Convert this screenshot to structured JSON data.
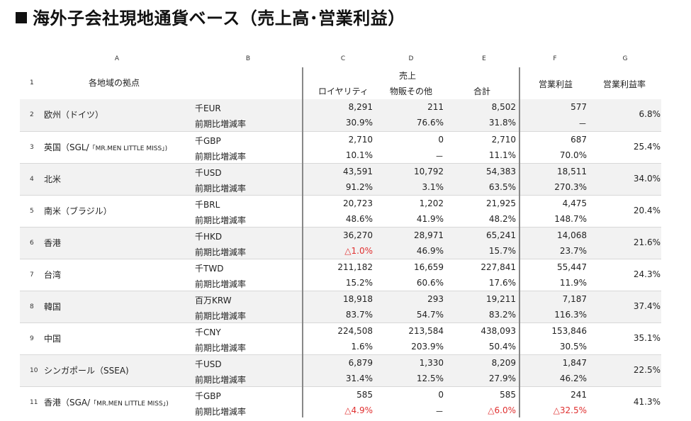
{
  "title": "海外子会社現地通貨ベース（売上高･営業利益）",
  "columns": [
    "A",
    "B",
    "C",
    "D",
    "E",
    "F",
    "G"
  ],
  "header": {
    "row_num": "1",
    "location_label": "各地域の拠点",
    "sales_group": "売上",
    "royalty": "ロイヤリティ",
    "retail_other": "物販その他",
    "total": "合計",
    "op_profit": "営業利益",
    "op_margin": "営業利益率"
  },
  "rows": [
    {
      "num": "2",
      "loc": "欧州（ドイツ）",
      "loc_small": "",
      "unit": "千EUR",
      "change_label": "前期比増減率",
      "royalty": "8,291",
      "retail": "211",
      "total": "8,502",
      "profit": "577",
      "royalty_chg": "30.9%",
      "retail_chg": "76.6%",
      "total_chg": "31.8%",
      "profit_chg": "－",
      "margin": "6.8%"
    },
    {
      "num": "3",
      "loc": "英国（SGL/",
      "loc_small": "「MR.MEN LITTLE MISS」)",
      "unit": "千GBP",
      "change_label": "前期比増減率",
      "royalty": "2,710",
      "retail": "0",
      "total": "2,710",
      "profit": "687",
      "royalty_chg": "10.1%",
      "retail_chg": "－",
      "total_chg": "11.1%",
      "profit_chg": "70.0%",
      "margin": "25.4%"
    },
    {
      "num": "4",
      "loc": "北米",
      "loc_small": "",
      "unit": "千USD",
      "change_label": "前期比増減率",
      "royalty": "43,591",
      "retail": "10,792",
      "total": "54,383",
      "profit": "18,511",
      "royalty_chg": "91.2%",
      "retail_chg": "3.1%",
      "total_chg": "63.5%",
      "profit_chg": "270.3%",
      "margin": "34.0%"
    },
    {
      "num": "5",
      "loc": "南米（ブラジル）",
      "loc_small": "",
      "unit": "千BRL",
      "change_label": "前期比増減率",
      "royalty": "20,723",
      "retail": "1,202",
      "total": "21,925",
      "profit": "4,475",
      "royalty_chg": "48.6%",
      "retail_chg": "41.9%",
      "total_chg": "48.2%",
      "profit_chg": "148.7%",
      "margin": "20.4%"
    },
    {
      "num": "6",
      "loc": "香港",
      "loc_small": "",
      "unit": "千HKD",
      "change_label": "前期比増減率",
      "royalty": "36,270",
      "retail": "28,971",
      "total": "65,241",
      "profit": "14,068",
      "royalty_chg": "△1.0%",
      "retail_chg": "46.9%",
      "total_chg": "15.7%",
      "profit_chg": "23.7%",
      "margin": "21.6%"
    },
    {
      "num": "7",
      "loc": "台湾",
      "loc_small": "",
      "unit": "千TWD",
      "change_label": "前期比増減率",
      "royalty": "211,182",
      "retail": "16,659",
      "total": "227,841",
      "profit": "55,447",
      "royalty_chg": "15.2%",
      "retail_chg": "60.6%",
      "total_chg": "17.6%",
      "profit_chg": "11.9%",
      "margin": "24.3%"
    },
    {
      "num": "8",
      "loc": "韓国",
      "loc_small": "",
      "unit": "百万KRW",
      "change_label": "前期比増減率",
      "royalty": "18,918",
      "retail": "293",
      "total": "19,211",
      "profit": "7,187",
      "royalty_chg": "83.7%",
      "retail_chg": "54.7%",
      "total_chg": "83.2%",
      "profit_chg": "116.3%",
      "margin": "37.4%"
    },
    {
      "num": "9",
      "loc": "中国",
      "loc_small": "",
      "unit": "千CNY",
      "change_label": "前期比増減率",
      "royalty": "224,508",
      "retail": "213,584",
      "total": "438,093",
      "profit": "153,846",
      "royalty_chg": "1.6%",
      "retail_chg": "203.9%",
      "total_chg": "50.4%",
      "profit_chg": "30.5%",
      "margin": "35.1%"
    },
    {
      "num": "10",
      "loc": "シンガポール（SSEA)",
      "loc_small": "",
      "unit": "千USD",
      "change_label": "前期比増減率",
      "royalty": "6,879",
      "retail": "1,330",
      "total": "8,209",
      "profit": "1,847",
      "royalty_chg": "31.4%",
      "retail_chg": "12.5%",
      "total_chg": "27.9%",
      "profit_chg": "46.2%",
      "margin": "22.5%"
    },
    {
      "num": "11",
      "loc": "香港（SGA/",
      "loc_small": "「MR.MEN LITTLE MISS」)",
      "unit": "千GBP",
      "change_label": "前期比増減率",
      "royalty": "585",
      "retail": "0",
      "total": "585",
      "profit": "241",
      "royalty_chg": "△4.9%",
      "retail_chg": "－",
      "total_chg": "△6.0%",
      "profit_chg": "△32.5%",
      "margin": "41.3%"
    }
  ]
}
